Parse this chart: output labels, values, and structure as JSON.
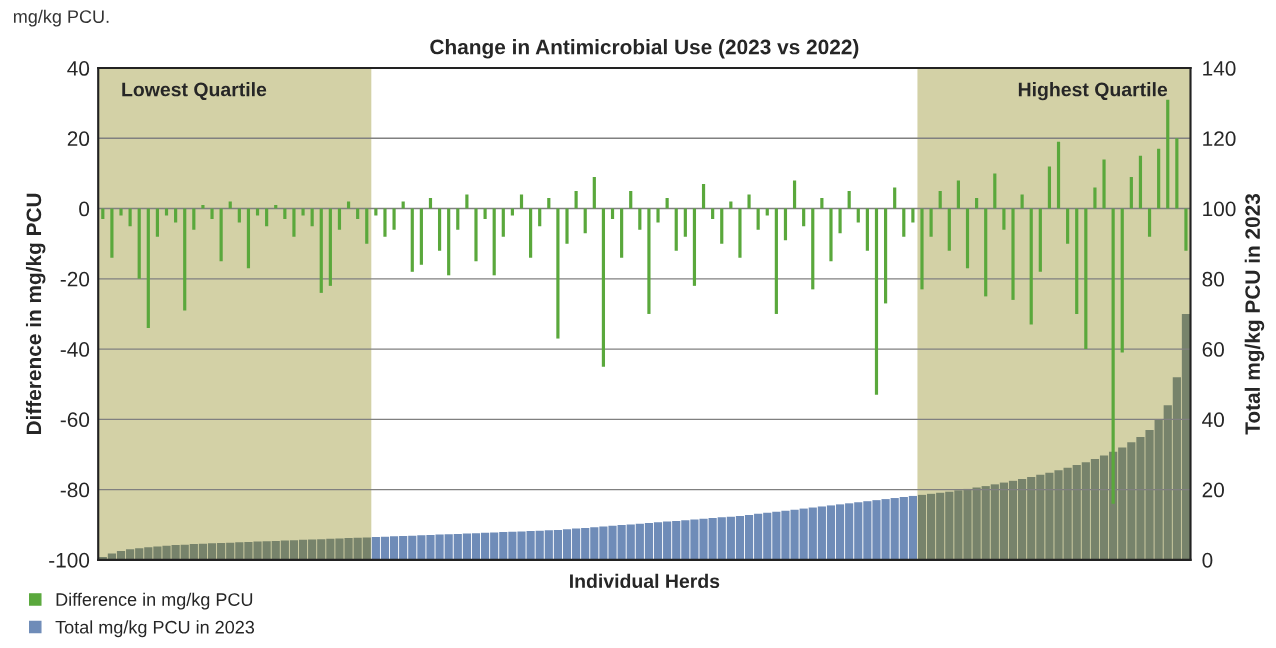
{
  "chart_data": {
    "type": "bar",
    "title": "Change in Antimicrobial Use (2023 vs 2022)",
    "xlabel": "Individual Herds",
    "ylabel": "Difference in mg/kg PCU",
    "y2label": "Total mg/kg PCU in 2023",
    "annotations": [
      "mg/kg PCU.",
      "Lowest Quartile",
      "Highest Quartile"
    ],
    "categories": [
      null,
      null,
      null,
      null,
      null,
      null,
      null,
      null,
      null,
      null,
      null,
      null,
      null,
      null,
      null,
      null,
      null,
      null,
      null,
      null,
      null,
      null,
      null,
      null,
      null,
      null,
      null,
      null,
      null,
      null,
      null,
      null,
      null,
      null,
      null,
      null,
      null,
      null,
      null,
      null,
      null,
      null,
      null,
      null,
      null,
      null,
      null,
      null,
      null,
      null,
      null,
      null,
      null,
      null,
      null,
      null,
      null,
      null,
      null,
      null,
      null,
      null,
      null,
      null,
      null,
      null,
      null,
      null,
      null,
      null,
      null,
      null,
      null,
      null,
      null,
      null,
      null,
      null,
      null,
      null,
      null,
      null,
      null,
      null,
      null,
      null,
      null,
      null,
      null,
      null,
      null,
      null,
      null,
      null,
      null,
      null,
      null,
      null,
      null,
      null,
      null,
      null,
      null,
      null,
      null,
      null,
      null,
      null,
      null,
      null,
      null,
      null,
      null,
      null,
      null,
      null,
      null,
      null,
      null,
      null
    ],
    "series": [
      {
        "name": "Total mg/kg PCU in 2023",
        "axis": "y2",
        "color": "#6f8cb8",
        "colors": [
          "#77836b",
          "#77836b",
          "#77836b",
          "#77836b",
          "#77836b",
          "#77836b",
          "#77836b",
          "#77836b",
          "#77836b",
          "#77836b",
          "#77836b",
          "#77836b",
          "#77836b",
          "#77836b",
          "#77836b",
          "#77836b",
          "#77836b",
          "#77836b",
          "#77836b",
          "#77836b",
          "#77836b",
          "#77836b",
          "#77836b",
          "#77836b",
          "#77836b",
          "#77836b",
          "#77836b",
          "#77836b",
          "#77836b",
          "#77836b",
          "#6f8cb8",
          "#6f8cb8",
          "#6f8cb8",
          "#6f8cb8",
          "#6f8cb8",
          "#6f8cb8",
          "#6f8cb8",
          "#6f8cb8",
          "#6f8cb8",
          "#6f8cb8",
          "#6f8cb8",
          "#6f8cb8",
          "#6f8cb8",
          "#6f8cb8",
          "#6f8cb8",
          "#6f8cb8",
          "#6f8cb8",
          "#6f8cb8",
          "#6f8cb8",
          "#6f8cb8",
          "#6f8cb8",
          "#6f8cb8",
          "#6f8cb8",
          "#6f8cb8",
          "#6f8cb8",
          "#6f8cb8",
          "#6f8cb8",
          "#6f8cb8",
          "#6f8cb8",
          "#6f8cb8",
          "#6f8cb8",
          "#6f8cb8",
          "#6f8cb8",
          "#6f8cb8",
          "#6f8cb8",
          "#6f8cb8",
          "#6f8cb8",
          "#6f8cb8",
          "#6f8cb8",
          "#6f8cb8",
          "#6f8cb8",
          "#6f8cb8",
          "#6f8cb8",
          "#6f8cb8",
          "#6f8cb8",
          "#6f8cb8",
          "#6f8cb8",
          "#6f8cb8",
          "#6f8cb8",
          "#6f8cb8",
          "#6f8cb8",
          "#6f8cb8",
          "#6f8cb8",
          "#6f8cb8",
          "#6f8cb8",
          "#6f8cb8",
          "#6f8cb8",
          "#6f8cb8",
          "#6f8cb8",
          "#6f8cb8",
          "#77836b",
          "#77836b",
          "#77836b",
          "#77836b",
          "#77836b",
          "#77836b",
          "#77836b",
          "#77836b",
          "#77836b",
          "#77836b",
          "#77836b",
          "#77836b",
          "#77836b",
          "#77836b",
          "#77836b",
          "#77836b",
          "#77836b",
          "#77836b",
          "#77836b",
          "#77836b",
          "#77836b",
          "#77836b",
          "#77836b",
          "#77836b",
          "#77836b",
          "#77836b",
          "#77836b",
          "#77836b",
          "#77836b",
          "#77836b"
        ],
        "values": [
          0.8,
          1.8,
          2.5,
          3.0,
          3.3,
          3.6,
          3.8,
          4.0,
          4.2,
          4.3,
          4.5,
          4.6,
          4.7,
          4.8,
          4.9,
          5.0,
          5.1,
          5.2,
          5.3,
          5.4,
          5.5,
          5.6,
          5.7,
          5.8,
          5.9,
          6.0,
          6.1,
          6.2,
          6.3,
          6.4,
          6.5,
          6.6,
          6.7,
          6.8,
          6.9,
          7.0,
          7.1,
          7.2,
          7.3,
          7.4,
          7.5,
          7.6,
          7.7,
          7.8,
          7.9,
          8.0,
          8.1,
          8.2,
          8.3,
          8.4,
          8.5,
          8.7,
          8.9,
          9.1,
          9.3,
          9.5,
          9.7,
          9.9,
          10.1,
          10.3,
          10.5,
          10.7,
          10.9,
          11.1,
          11.3,
          11.5,
          11.7,
          11.9,
          12.1,
          12.3,
          12.5,
          12.8,
          13.1,
          13.4,
          13.7,
          14.0,
          14.3,
          14.6,
          14.9,
          15.2,
          15.5,
          15.8,
          16.1,
          16.4,
          16.7,
          17.0,
          17.3,
          17.6,
          17.9,
          18.2,
          18.5,
          18.8,
          19.1,
          19.4,
          19.8,
          20.2,
          20.6,
          21,
          21.5,
          22,
          22.5,
          23,
          23.6,
          24.2,
          24.8,
          25.5,
          26.2,
          27,
          27.8,
          28.7,
          29.7,
          30.8,
          32,
          33.5,
          35,
          37,
          40,
          44,
          52,
          70
        ]
      },
      {
        "name": "Difference in mg/kg PCU",
        "axis": "y",
        "color": "#5aa83c",
        "values": [
          -3,
          -14,
          -2,
          -5,
          -20,
          -34,
          -8,
          -2,
          -4,
          -29,
          -6,
          1,
          -3,
          -15,
          2,
          -4,
          -17,
          -2,
          -5,
          1,
          -3,
          -8,
          -2,
          -5,
          -24,
          -22,
          -6,
          2,
          -3,
          -10,
          -2,
          -8,
          -6,
          2,
          -18,
          -16,
          3,
          -12,
          -19,
          -6,
          4,
          -15,
          -3,
          -19,
          -8,
          -2,
          4,
          -14,
          -5,
          3,
          -37,
          -10,
          5,
          -7,
          9,
          -45,
          -3,
          -14,
          5,
          -6,
          -30,
          -4,
          3,
          -12,
          -8,
          -22,
          7,
          -3,
          -10,
          2,
          -14,
          4,
          -6,
          -2,
          -30,
          -9,
          8,
          -5,
          -23,
          3,
          -15,
          -7,
          5,
          -4,
          -12,
          -53,
          -27,
          6,
          -8,
          -4,
          -23,
          -8,
          5,
          -12,
          8,
          -17,
          3,
          -25,
          10,
          -6,
          -26,
          4,
          -33,
          -18,
          12,
          19,
          -10,
          -30,
          -40,
          6,
          14,
          -84,
          -41,
          9,
          15,
          -8,
          17,
          31,
          20,
          -12
        ]
      }
    ],
    "ylim": [
      -100,
      40
    ],
    "yticks": [
      -100,
      -80,
      -60,
      -40,
      -20,
      0,
      20,
      40
    ],
    "y2lim": [
      0,
      140
    ],
    "y2ticks": [
      0,
      20,
      40,
      60,
      80,
      100,
      120,
      140
    ],
    "grid": "y",
    "legend": "bottom left",
    "tick_labels": "y"
  }
}
